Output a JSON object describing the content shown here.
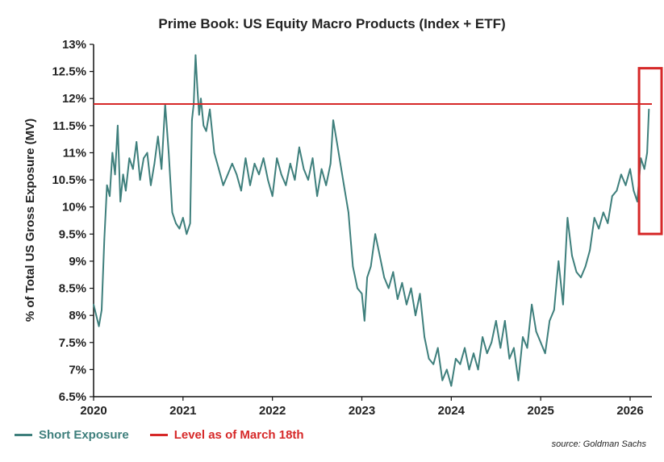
{
  "title": "Prime Book: US Equity Macro Products (Index + ETF)",
  "source": "source: Goldman Sachs",
  "colors": {
    "series": "#3e7f7c",
    "reference": "#d62828",
    "highlight_box": "#d62828"
  },
  "chart_data": {
    "type": "line",
    "title": "Prime Book: US Equity Macro Products (Index + ETF)",
    "xlabel": "",
    "ylabel": "% of Total US Gross Exposure (MV)",
    "xlim": [
      2020.0,
      2026.3
    ],
    "ylim": [
      6.5,
      13.0
    ],
    "x_ticks": [
      "2020",
      "2021",
      "2022",
      "2023",
      "2024",
      "2025",
      "2026"
    ],
    "y_ticks": [
      "6.5%",
      "7%",
      "7.5%",
      "8%",
      "8.5%",
      "9%",
      "9.5%",
      "10%",
      "10.5%",
      "11%",
      "11.5%",
      "12%",
      "12.5%",
      "13%"
    ],
    "grid": "none",
    "series": [
      {
        "name": "Short Exposure",
        "x": [
          2020.0,
          2020.03,
          2020.06,
          2020.09,
          2020.12,
          2020.15,
          2020.18,
          2020.21,
          2020.24,
          2020.27,
          2020.3,
          2020.33,
          2020.36,
          2020.4,
          2020.44,
          2020.48,
          2020.52,
          2020.56,
          2020.6,
          2020.64,
          2020.68,
          2020.72,
          2020.76,
          2020.8,
          2020.84,
          2020.88,
          2020.92,
          2020.96,
          2021.0,
          2021.04,
          2021.08,
          2021.1,
          2021.12,
          2021.14,
          2021.16,
          2021.18,
          2021.2,
          2021.23,
          2021.26,
          2021.3,
          2021.35,
          2021.4,
          2021.45,
          2021.5,
          2021.55,
          2021.6,
          2021.65,
          2021.7,
          2021.75,
          2021.8,
          2021.85,
          2021.9,
          2021.95,
          2022.0,
          2022.05,
          2022.1,
          2022.15,
          2022.2,
          2022.25,
          2022.3,
          2022.35,
          2022.4,
          2022.45,
          2022.5,
          2022.55,
          2022.6,
          2022.65,
          2022.68,
          2022.72,
          2022.76,
          2022.8,
          2022.85,
          2022.9,
          2022.95,
          2023.0,
          2023.03,
          2023.06,
          2023.1,
          2023.15,
          2023.2,
          2023.25,
          2023.3,
          2023.35,
          2023.4,
          2023.45,
          2023.5,
          2023.55,
          2023.6,
          2023.65,
          2023.7,
          2023.75,
          2023.8,
          2023.85,
          2023.9,
          2023.95,
          2024.0,
          2024.05,
          2024.1,
          2024.15,
          2024.2,
          2024.25,
          2024.3,
          2024.35,
          2024.4,
          2024.45,
          2024.5,
          2024.55,
          2024.6,
          2024.65,
          2024.7,
          2024.75,
          2024.8,
          2024.85,
          2024.9,
          2024.95,
          2025.0,
          2025.05,
          2025.1,
          2025.15,
          2025.2,
          2025.25,
          2025.3,
          2025.35,
          2025.4,
          2025.45,
          2025.5,
          2025.55,
          2025.6,
          2025.65,
          2025.7,
          2025.75,
          2025.8,
          2025.85,
          2025.9,
          2025.95,
          2026.0,
          2026.04,
          2026.08,
          2026.12,
          2026.16,
          2026.19,
          2026.21
        ],
        "values": [
          8.2,
          8.0,
          7.8,
          8.1,
          9.4,
          10.4,
          10.2,
          11.0,
          10.6,
          11.5,
          10.1,
          10.6,
          10.3,
          10.9,
          10.7,
          11.2,
          10.5,
          10.9,
          11.0,
          10.4,
          10.8,
          11.3,
          10.7,
          11.9,
          11.0,
          9.9,
          9.7,
          9.6,
          9.8,
          9.5,
          9.7,
          11.6,
          11.9,
          12.8,
          12.2,
          11.7,
          12.0,
          11.5,
          11.4,
          11.8,
          11.0,
          10.7,
          10.4,
          10.6,
          10.8,
          10.6,
          10.3,
          10.9,
          10.4,
          10.8,
          10.6,
          10.9,
          10.5,
          10.2,
          10.9,
          10.6,
          10.4,
          10.8,
          10.5,
          11.1,
          10.7,
          10.5,
          10.9,
          10.2,
          10.7,
          10.4,
          10.8,
          11.6,
          11.2,
          10.8,
          10.4,
          9.9,
          8.9,
          8.5,
          8.4,
          7.9,
          8.7,
          8.9,
          9.5,
          9.1,
          8.7,
          8.5,
          8.8,
          8.3,
          8.6,
          8.2,
          8.5,
          8.0,
          8.4,
          7.6,
          7.2,
          7.1,
          7.4,
          6.8,
          7.0,
          6.7,
          7.2,
          7.1,
          7.4,
          7.0,
          7.3,
          7.0,
          7.6,
          7.3,
          7.5,
          7.9,
          7.4,
          7.9,
          7.2,
          7.4,
          6.8,
          7.6,
          7.4,
          8.2,
          7.7,
          7.5,
          7.3,
          7.9,
          8.1,
          9.0,
          8.2,
          9.8,
          9.1,
          8.8,
          8.7,
          8.9,
          9.2,
          9.8,
          9.6,
          9.9,
          9.7,
          10.2,
          10.3,
          10.6,
          10.4,
          10.7,
          10.3,
          10.1,
          10.9,
          10.7,
          11.0,
          11.8
        ]
      },
      {
        "name": "Level as of March 18th",
        "x": [
          2020.0,
          2026.3
        ],
        "values": [
          11.9,
          11.9
        ]
      }
    ],
    "annotations": [
      {
        "type": "highlight_box",
        "x_range": [
          2026.1,
          2026.3
        ],
        "y_range": [
          9.8,
          12.5
        ]
      }
    ],
    "legend": {
      "placement": "bottom-left",
      "entries": [
        "Short Exposure",
        "Level as of March 18th"
      ]
    }
  }
}
